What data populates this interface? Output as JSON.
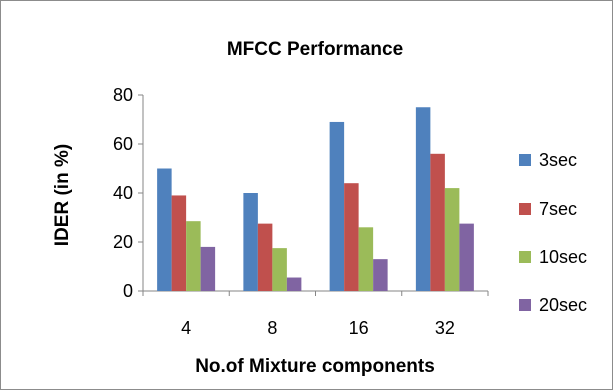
{
  "chart_data": {
    "type": "bar",
    "title": "MFCC Performance",
    "xlabel": "No.of Mixture components",
    "ylabel": "IDER (in %)",
    "categories": [
      "4",
      "8",
      "16",
      "32"
    ],
    "ylim": [
      0,
      80
    ],
    "yticks": [
      0,
      20,
      40,
      60,
      80
    ],
    "grid": false,
    "legend": "right",
    "series": [
      {
        "name": "3sec",
        "color": "#4f81bd",
        "values": [
          50,
          40,
          69,
          75
        ]
      },
      {
        "name": "7sec",
        "color": "#c0504d",
        "values": [
          39,
          27.5,
          44,
          56
        ]
      },
      {
        "name": "10sec",
        "color": "#9bbb59",
        "values": [
          28.5,
          17.5,
          26,
          42
        ]
      },
      {
        "name": "20sec",
        "color": "#8064a2",
        "values": [
          18,
          5.5,
          13,
          27.5
        ]
      }
    ]
  }
}
